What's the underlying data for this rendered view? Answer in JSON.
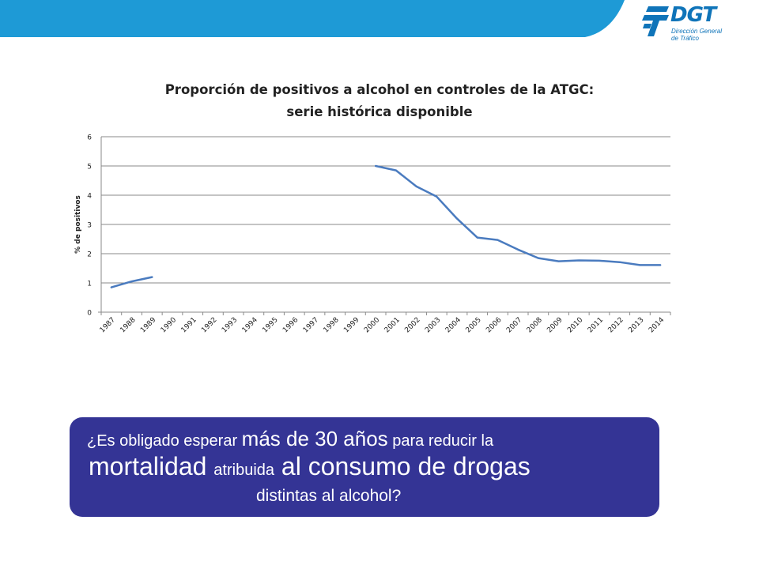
{
  "header": {
    "logo": {
      "name": "DGT",
      "sub1": "Dirección General",
      "sub2": "de Tráfico",
      "color": "#0f74b9"
    },
    "banner_color": "#1e9ad6"
  },
  "chart_data": {
    "type": "line",
    "title_line1": "Proporción de positivos a alcohol en controles de la ATGC:",
    "title_line2": "serie histórica disponible",
    "ylabel": "% de positivos",
    "xlabel": "",
    "ylim": [
      0,
      6
    ],
    "yticks": [
      0,
      1,
      2,
      3,
      4,
      5,
      6
    ],
    "grid": true,
    "categories": [
      "1987",
      "1988",
      "1989",
      "1990",
      "1991",
      "1992",
      "1993",
      "1994",
      "1995",
      "1996",
      "1997",
      "1998",
      "1999",
      "2000",
      "2001",
      "2002",
      "2003",
      "2004",
      "2005",
      "2006",
      "2007",
      "2008",
      "2009",
      "2010",
      "2011",
      "2012",
      "2013",
      "2014"
    ],
    "series": [
      {
        "color": "#4a7bbf",
        "values": [
          0.85,
          1.05,
          1.2,
          null,
          null,
          null,
          null,
          null,
          null,
          null,
          null,
          null,
          null,
          5.0,
          4.85,
          4.3,
          3.95,
          3.2,
          2.55,
          2.47,
          2.14,
          1.85,
          1.74,
          1.77,
          1.76,
          1.71,
          1.61,
          1.61
        ]
      }
    ]
  },
  "callout": {
    "line1_a": "¿Es obligado esperar ",
    "line1_b": "más de 30 años",
    "line1_c": " para reducir la",
    "line2_a": "mortalidad ",
    "line2_b": "atribuida",
    "line2_c": " al consumo de drogas",
    "line3": "distintas al alcohol?",
    "bg_color": "#343495"
  }
}
